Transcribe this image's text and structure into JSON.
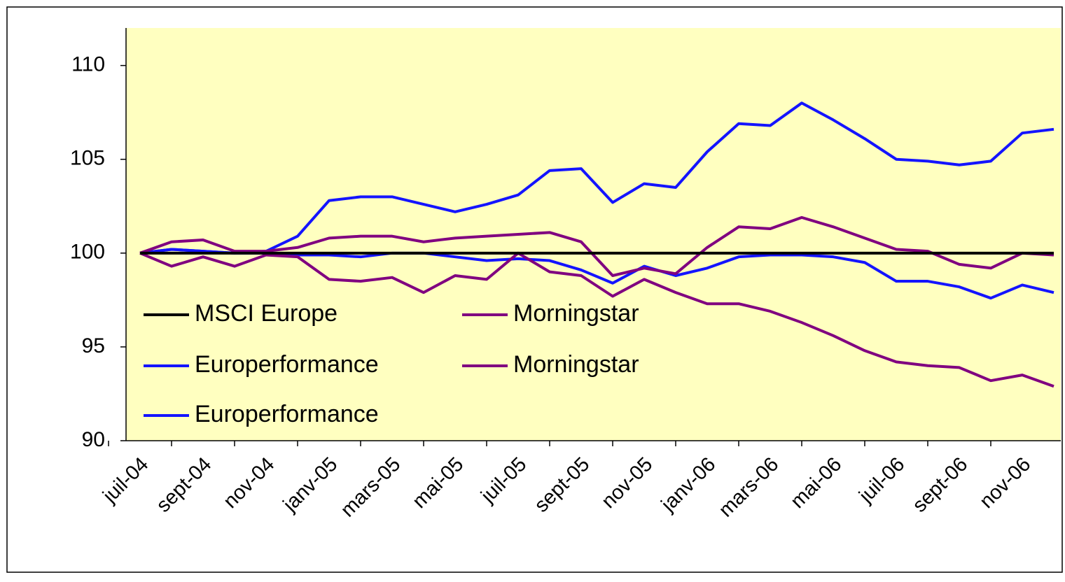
{
  "chart_data": {
    "type": "line",
    "categories": [
      "juil-04",
      null,
      "sept-04",
      null,
      "nov-04",
      null,
      "janv-05",
      null,
      "mars-05",
      null,
      "mai-05",
      null,
      "juil-05",
      null,
      "sept-05",
      null,
      "nov-05",
      null,
      "janv-06",
      null,
      "mars-06",
      null,
      "mai-06",
      null,
      "juil-06",
      null,
      "sept-06",
      null,
      "nov-06",
      null
    ],
    "series": [
      {
        "name": "MSCI Europe",
        "color": "#000000",
        "values": [
          100,
          100,
          100,
          100,
          100,
          100,
          100,
          100,
          100,
          100,
          100,
          100,
          100,
          100,
          100,
          100,
          100,
          100,
          100,
          100,
          100,
          100,
          100,
          100,
          100,
          100,
          100,
          100,
          100,
          100
        ]
      },
      {
        "name": "Europerformance",
        "color": "#1414ff",
        "values": [
          100,
          100.2,
          100.1,
          100,
          100.1,
          100.9,
          102.8,
          103,
          103,
          102.6,
          102.2,
          102.6,
          103.1,
          104.4,
          104.5,
          102.7,
          103.7,
          103.5,
          105.4,
          106.9,
          106.8,
          108,
          107.1,
          106.1,
          105,
          104.9,
          104.7,
          104.9,
          106.4,
          106.6
        ]
      },
      {
        "name": "Europerformance",
        "color": "#1414ff",
        "values": [
          100,
          100.2,
          100.1,
          100,
          100,
          99.9,
          99.9,
          99.8,
          100,
          100,
          99.8,
          99.6,
          99.7,
          99.6,
          99.1,
          98.4,
          99.3,
          98.8,
          99.2,
          99.8,
          99.9,
          99.9,
          99.8,
          99.5,
          98.5,
          98.5,
          98.2,
          97.6,
          98.3,
          97.9
        ]
      },
      {
        "name": "Morningstar",
        "color": "#800080",
        "values": [
          100,
          100.6,
          100.7,
          100.1,
          100.1,
          100.3,
          100.8,
          100.9,
          100.9,
          100.6,
          100.8,
          100.9,
          101,
          101.1,
          100.6,
          98.8,
          99.2,
          98.9,
          100.3,
          101.4,
          101.3,
          101.9,
          101.4,
          100.8,
          100.2,
          100.1,
          99.4,
          99.2,
          100,
          99.9
        ]
      },
      {
        "name": "Morningstar",
        "color": "#800080",
        "values": [
          100,
          99.3,
          99.8,
          99.3,
          99.9,
          99.8,
          98.6,
          98.5,
          98.7,
          97.9,
          98.8,
          98.6,
          100,
          99,
          98.8,
          97.7,
          98.6,
          97.9,
          97.3,
          97.3,
          96.9,
          96.3,
          95.6,
          94.8,
          94.2,
          94,
          93.9,
          93.2,
          93.5,
          92.9
        ]
      }
    ],
    "ylim": [
      90,
      112
    ],
    "yticks": [
      90,
      95,
      100,
      105,
      110
    ],
    "plot_background": "#ffffc0"
  }
}
